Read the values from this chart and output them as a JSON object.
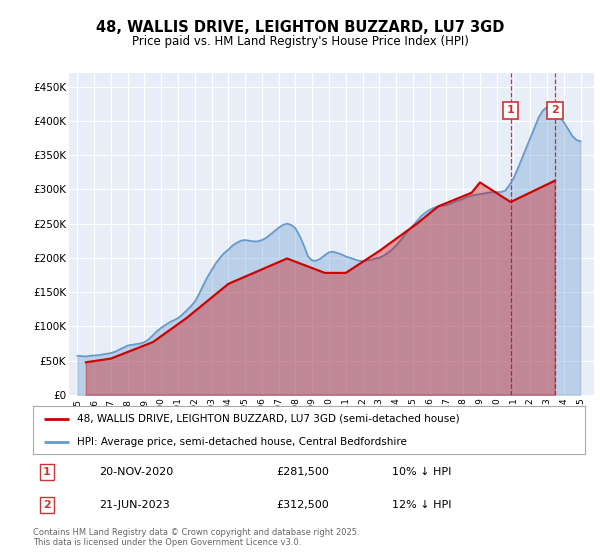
{
  "title": "48, WALLIS DRIVE, LEIGHTON BUZZARD, LU7 3GD",
  "subtitle": "Price paid vs. HM Land Registry's House Price Index (HPI)",
  "ylim": [
    0,
    470000
  ],
  "yticks": [
    0,
    50000,
    100000,
    150000,
    200000,
    250000,
    300000,
    350000,
    400000,
    450000
  ],
  "ytick_labels": [
    "£0",
    "£50K",
    "£100K",
    "£150K",
    "£200K",
    "£250K",
    "£300K",
    "£350K",
    "£400K",
    "£450K"
  ],
  "bg_color": "#ffffff",
  "plot_bg_color": "#e8eef8",
  "grid_color": "#ffffff",
  "hpi_color": "#6699cc",
  "price_color": "#cc0000",
  "transaction1_date": "20-NOV-2020",
  "transaction1_price": 281500,
  "transaction1_pct": "10%",
  "transaction2_date": "21-JUN-2023",
  "transaction2_price": 312500,
  "transaction2_pct": "12%",
  "legend_label_price": "48, WALLIS DRIVE, LEIGHTON BUZZARD, LU7 3GD (semi-detached house)",
  "legend_label_hpi": "HPI: Average price, semi-detached house, Central Bedfordshire",
  "footnote": "Contains HM Land Registry data © Crown copyright and database right 2025.\nThis data is licensed under the Open Government Licence v3.0.",
  "hpi_years": [
    1995.0,
    1995.25,
    1995.5,
    1995.75,
    1996.0,
    1996.25,
    1996.5,
    1996.75,
    1997.0,
    1997.25,
    1997.5,
    1997.75,
    1998.0,
    1998.25,
    1998.5,
    1998.75,
    1999.0,
    1999.25,
    1999.5,
    1999.75,
    2000.0,
    2000.25,
    2000.5,
    2000.75,
    2001.0,
    2001.25,
    2001.5,
    2001.75,
    2002.0,
    2002.25,
    2002.5,
    2002.75,
    2003.0,
    2003.25,
    2003.5,
    2003.75,
    2004.0,
    2004.25,
    2004.5,
    2004.75,
    2005.0,
    2005.25,
    2005.5,
    2005.75,
    2006.0,
    2006.25,
    2006.5,
    2006.75,
    2007.0,
    2007.25,
    2007.5,
    2007.75,
    2008.0,
    2008.25,
    2008.5,
    2008.75,
    2009.0,
    2009.25,
    2009.5,
    2009.75,
    2010.0,
    2010.25,
    2010.5,
    2010.75,
    2011.0,
    2011.25,
    2011.5,
    2011.75,
    2012.0,
    2012.25,
    2012.5,
    2012.75,
    2013.0,
    2013.25,
    2013.5,
    2013.75,
    2014.0,
    2014.25,
    2014.5,
    2014.75,
    2015.0,
    2015.25,
    2015.5,
    2015.75,
    2016.0,
    2016.25,
    2016.5,
    2016.75,
    2017.0,
    2017.25,
    2017.5,
    2017.75,
    2018.0,
    2018.25,
    2018.5,
    2018.75,
    2019.0,
    2019.25,
    2019.5,
    2019.75,
    2020.0,
    2020.25,
    2020.5,
    2020.75,
    2021.0,
    2021.25,
    2021.5,
    2021.75,
    2022.0,
    2022.25,
    2022.5,
    2022.75,
    2023.0,
    2023.25,
    2023.5,
    2023.75,
    2024.0,
    2024.25,
    2024.5,
    2024.75,
    2025.0
  ],
  "hpi_values": [
    57000,
    56500,
    56000,
    57000,
    57500,
    58000,
    59000,
    60000,
    61000,
    63000,
    66000,
    69000,
    72000,
    73000,
    74000,
    75000,
    77000,
    81000,
    87000,
    93000,
    98000,
    102000,
    106000,
    109000,
    112000,
    117000,
    123000,
    129000,
    136000,
    147000,
    160000,
    172000,
    182000,
    192000,
    200000,
    207000,
    212000,
    218000,
    222000,
    225000,
    226000,
    225000,
    224000,
    224000,
    226000,
    229000,
    234000,
    239000,
    244000,
    248000,
    250000,
    248000,
    243000,
    232000,
    218000,
    202000,
    196000,
    196000,
    199000,
    204000,
    208000,
    209000,
    207000,
    205000,
    202000,
    200000,
    198000,
    196000,
    195000,
    196000,
    197000,
    199000,
    200000,
    203000,
    207000,
    212000,
    218000,
    225000,
    233000,
    240000,
    247000,
    254000,
    261000,
    266000,
    270000,
    273000,
    275000,
    276000,
    277000,
    279000,
    282000,
    284000,
    286000,
    289000,
    291000,
    292000,
    293000,
    294000,
    295000,
    296000,
    296000,
    296000,
    298000,
    306000,
    316000,
    330000,
    345000,
    360000,
    375000,
    390000,
    405000,
    415000,
    420000,
    418000,
    412000,
    405000,
    398000,
    388000,
    378000,
    372000,
    370000
  ],
  "price_dates": [
    1995.5,
    1997.0,
    1999.5,
    2001.5,
    2004.0,
    2007.5,
    2009.75,
    2011.0,
    2013.0,
    2015.25,
    2016.5,
    2017.5,
    2018.5,
    2019.0,
    2020.83,
    2023.46
  ],
  "price_values": [
    47500,
    53000,
    77000,
    112000,
    162000,
    199000,
    178000,
    178000,
    210000,
    250000,
    275000,
    285000,
    295000,
    310000,
    281500,
    312500
  ],
  "transaction1_x": 2020.83,
  "transaction2_x": 2023.46,
  "xmin": 1994.5,
  "xmax": 2025.8,
  "xticks": [
    1995,
    1996,
    1997,
    1998,
    1999,
    2000,
    2001,
    2002,
    2003,
    2004,
    2005,
    2006,
    2007,
    2008,
    2009,
    2010,
    2011,
    2012,
    2013,
    2014,
    2015,
    2016,
    2017,
    2018,
    2019,
    2020,
    2021,
    2022,
    2023,
    2024,
    2025
  ]
}
